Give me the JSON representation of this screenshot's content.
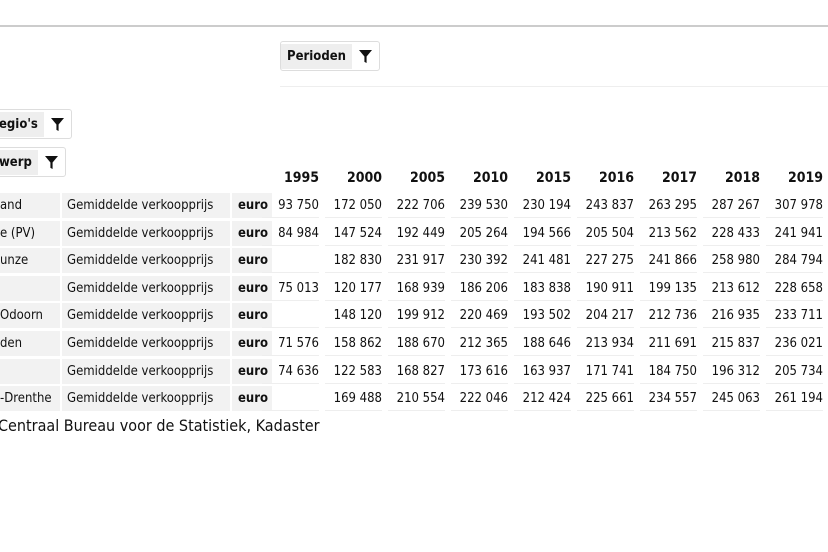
{
  "filters": {
    "columns": "Perioden",
    "rows": [
      "egio's",
      "werp"
    ]
  },
  "table": {
    "header": [
      "1995",
      "2000",
      "2005",
      "2010",
      "2015",
      "2016",
      "2017",
      "2018",
      "2019"
    ],
    "rows": [
      {
        "region": "and",
        "measure": "Gemiddelde verkoopprijs",
        "unit": "euro",
        "values": [
          "93 750",
          "172 050",
          "222 706",
          "239 530",
          "230 194",
          "243 837",
          "263 295",
          "287 267",
          "307 978"
        ]
      },
      {
        "region": "e (PV)",
        "measure": "Gemiddelde verkoopprijs",
        "unit": "euro",
        "values": [
          "84 984",
          "147 524",
          "192 449",
          "205 264",
          "194 566",
          "205 504",
          "213 562",
          "228 433",
          "241 941"
        ]
      },
      {
        "region": "unze",
        "measure": "Gemiddelde verkoopprijs",
        "unit": "euro",
        "values": [
          null,
          "182 830",
          "231 917",
          "230 392",
          "241 481",
          "227 275",
          "241 866",
          "258 980",
          "284 794"
        ]
      },
      {
        "region": null,
        "measure": "Gemiddelde verkoopprijs",
        "unit": "euro",
        "values": [
          "75 013",
          "120 177",
          "168 939",
          "186 206",
          "183 838",
          "190 911",
          "199 135",
          "213 612",
          "228 658"
        ]
      },
      {
        "region": "Odoorn",
        "measure": "Gemiddelde verkoopprijs",
        "unit": "euro",
        "values": [
          null,
          "148 120",
          "199 912",
          "220 469",
          "193 502",
          "204 217",
          "212 736",
          "216 935",
          "233 711"
        ]
      },
      {
        "region": "den",
        "measure": "Gemiddelde verkoopprijs",
        "unit": "euro",
        "values": [
          "71 576",
          "158 862",
          "188 670",
          "212 365",
          "188 646",
          "213 934",
          "211 691",
          "215 837",
          "236 021"
        ]
      },
      {
        "region": null,
        "measure": "Gemiddelde verkoopprijs",
        "unit": "euro",
        "values": [
          "74 636",
          "122 583",
          "168 827",
          "173 616",
          "163 937",
          "171 741",
          "184 750",
          "196 312",
          "205 734"
        ]
      },
      {
        "region": "-Drenthe",
        "measure": "Gemiddelde verkoopprijs",
        "unit": "euro",
        "values": [
          null,
          "169 488",
          "210 554",
          "222 046",
          "212 424",
          "225 661",
          "234 557",
          "245 063",
          "261 194"
        ]
      }
    ]
  },
  "source": "Centraal Bureau voor de Statistiek, Kadaster"
}
